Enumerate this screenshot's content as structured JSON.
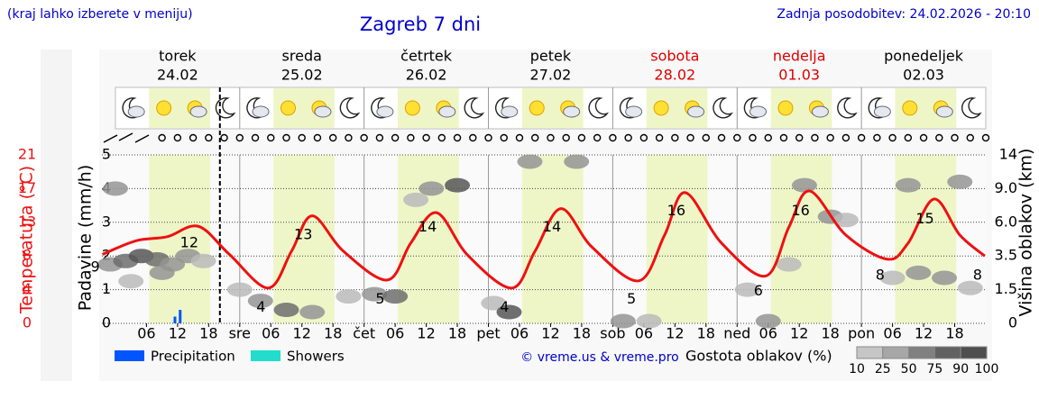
{
  "header": {
    "menu_hint": "(kraj lahko izberete v meniju)",
    "title": "Zagreb 7 dni",
    "updated": "Zadnja posodobitev: 24.02.2026 - 20:10"
  },
  "days": [
    {
      "name": "torek",
      "date": "24.02",
      "color": "#000000"
    },
    {
      "name": "sreda",
      "date": "25.02",
      "color": "#000000"
    },
    {
      "name": "četrtek",
      "date": "26.02",
      "color": "#000000"
    },
    {
      "name": "petek",
      "date": "27.02",
      "color": "#000000"
    },
    {
      "name": "sobota",
      "date": "28.02",
      "color": "#dd0000"
    },
    {
      "name": "nedelja",
      "date": "01.03",
      "color": "#dd0000"
    },
    {
      "name": "ponedeljek",
      "date": "02.03",
      "color": "#000000"
    }
  ],
  "chart_data": {
    "type": "line",
    "temperature_axis_label": "Temperatura (°C)",
    "precipitation_axis_label": "Padavine (mm/h)",
    "cloud_axis_label": "Višina oblakov (km)",
    "xlim": [
      -2.6,
      168
    ],
    "xticks": [
      {
        "value": 6,
        "label": "06"
      },
      {
        "value": 12,
        "label": "12"
      },
      {
        "value": 18,
        "label": "18"
      },
      {
        "value": 24,
        "label": "sre"
      },
      {
        "value": 30,
        "label": "06"
      },
      {
        "value": 36,
        "label": "12"
      },
      {
        "value": 42,
        "label": "18"
      },
      {
        "value": 48,
        "label": "čet"
      },
      {
        "value": 54,
        "label": "06"
      },
      {
        "value": 60,
        "label": "12"
      },
      {
        "value": 66,
        "label": "18"
      },
      {
        "value": 72,
        "label": "pet"
      },
      {
        "value": 78,
        "label": "06"
      },
      {
        "value": 84,
        "label": "12"
      },
      {
        "value": 90,
        "label": "18"
      },
      {
        "value": 96,
        "label": "sob"
      },
      {
        "value": 102,
        "label": "06"
      },
      {
        "value": 108,
        "label": "12"
      },
      {
        "value": 114,
        "label": "18"
      },
      {
        "value": 120,
        "label": "ned"
      },
      {
        "value": 126,
        "label": "06"
      },
      {
        "value": 132,
        "label": "12"
      },
      {
        "value": 138,
        "label": "18"
      },
      {
        "value": 144,
        "label": "pon"
      },
      {
        "value": 150,
        "label": "06"
      },
      {
        "value": 156,
        "label": "12"
      },
      {
        "value": 162,
        "label": "18"
      }
    ],
    "ylim": [
      0,
      5
    ],
    "yticks": [
      0,
      1,
      2,
      3,
      4,
      5
    ],
    "temperature_ylim": [
      0,
      21
    ],
    "temperature_ticks": [
      0,
      {
        "value": 4.2,
        "label": "4"
      },
      {
        "value": 8.4,
        "label": "8"
      },
      {
        "value": 12.6,
        "label": "13"
      },
      {
        "value": 16.8,
        "label": "17"
      },
      21
    ],
    "y2ticks": [
      0,
      1.5,
      3.5,
      {
        "value": 6,
        "label": "6.0"
      },
      {
        "value": 9,
        "label": "9.0"
      },
      14
    ],
    "grid": true,
    "series": [
      {
        "name": "Temperatura",
        "color": "#ee1111",
        "x": [
          -2.5,
          4,
          10,
          16,
          22,
          29.5,
          34,
          38,
          44,
          52.5,
          57,
          62,
          68,
          76.5,
          81,
          86,
          92,
          101,
          106,
          110,
          117,
          125.5,
          130,
          134,
          141,
          149,
          153,
          158,
          163,
          167.8
        ],
        "values": [
          8.6,
          10.3,
          10.8,
          12.1,
          8.6,
          4.4,
          9,
          13.4,
          9,
          5.4,
          10,
          13.8,
          8.5,
          4.4,
          9,
          14.3,
          9.5,
          5.3,
          11,
          16.3,
          10,
          5.9,
          12,
          16.5,
          11,
          8,
          10,
          15.5,
          11,
          8.4
        ]
      },
      {
        "name": "Precipitation",
        "color": "#0055ff",
        "x": [
          11.5,
          12.5
        ],
        "values": [
          0.2,
          0.4
        ]
      },
      {
        "name": "Showers",
        "color": "#22ddcc",
        "x": [],
        "values": []
      }
    ],
    "extremes": [
      {
        "x": -2.5,
        "value": 9,
        "kind": "min"
      },
      {
        "x": 16,
        "value": 12,
        "kind": "max"
      },
      {
        "x": 29.5,
        "value": 4,
        "kind": "min"
      },
      {
        "x": 38,
        "value": 13,
        "kind": "max"
      },
      {
        "x": 52.5,
        "value": 5,
        "kind": "min"
      },
      {
        "x": 62,
        "value": 14,
        "kind": "max"
      },
      {
        "x": 76.5,
        "value": 4,
        "kind": "min"
      },
      {
        "x": 86,
        "value": 14,
        "kind": "max"
      },
      {
        "x": 101,
        "value": 5,
        "kind": "min"
      },
      {
        "x": 110,
        "value": 16,
        "kind": "max"
      },
      {
        "x": 125.5,
        "value": 6,
        "kind": "min"
      },
      {
        "x": 134,
        "value": 16,
        "kind": "max"
      },
      {
        "x": 149,
        "value": 8,
        "kind": "min"
      },
      {
        "x": 158,
        "value": 15,
        "kind": "max"
      },
      {
        "x": 167.8,
        "value": 8,
        "kind": "min"
      }
    ],
    "clouds": {
      "x": [
        -1,
        2,
        5,
        8,
        11,
        14,
        17,
        0,
        3,
        9,
        24,
        28,
        33,
        38,
        45,
        50,
        54,
        61,
        66,
        58,
        73,
        76,
        80,
        89,
        98,
        103,
        122,
        126,
        133,
        138,
        141,
        130,
        150,
        155,
        160,
        165,
        153,
        163
      ],
      "height": [
        3.0,
        3.2,
        3.5,
        3.3,
        3.0,
        3.5,
        3.2,
        9,
        2.0,
        2.5,
        1.5,
        1.0,
        0.6,
        0.5,
        1.2,
        1.3,
        1.2,
        9,
        9.5,
        8,
        0.9,
        0.5,
        13,
        13,
        0.1,
        0.1,
        1.5,
        0.1,
        9.5,
        6.5,
        6.2,
        3.0,
        2.2,
        2.5,
        2.2,
        1.6,
        9.5,
        10
      ],
      "density": [
        50,
        75,
        90,
        75,
        50,
        50,
        25,
        50,
        25,
        50,
        25,
        50,
        75,
        50,
        25,
        50,
        75,
        50,
        90,
        25,
        25,
        90,
        50,
        50,
        50,
        25,
        25,
        50,
        50,
        50,
        25,
        25,
        25,
        50,
        50,
        25,
        50,
        50
      ]
    },
    "copyright": "© vreme.us & vreme.pro",
    "cloud_scale_label": "Gostota oblakov (%)",
    "cloud_scale": [
      10,
      25,
      50,
      75,
      90,
      100
    ]
  }
}
